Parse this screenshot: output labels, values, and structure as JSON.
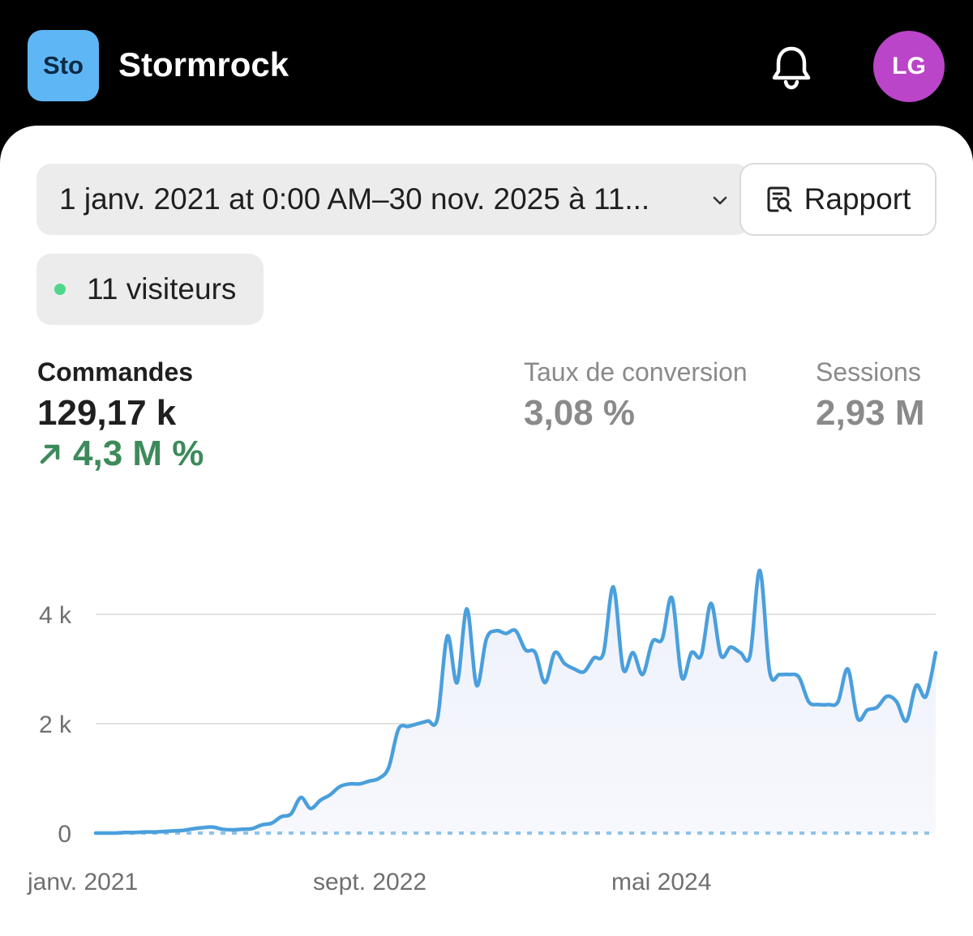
{
  "header": {
    "store_initials": "Sto",
    "store_name": "Stormrock",
    "avatar_initials": "LG",
    "avatar_color": "#bb45c8",
    "badge_color": "#5fb6f5",
    "bell_icon": "bell-icon"
  },
  "filters": {
    "date_range": "1 janv. 2021 at 0:00 AM–30 nov. 2025 à 11...",
    "report_label": "Rapport",
    "report_icon": "report-search-icon",
    "visitors_label": "11 visiteurs",
    "live_dot_color": "#4fd68a"
  },
  "metrics": {
    "orders_label": "Commandes",
    "orders_value": "129,17 k",
    "orders_change": "4,3 M %",
    "change_color": "#3d8a5a",
    "conversion_label": "Taux de conversion",
    "conversion_value": "3,08 %",
    "sessions_label": "Sessions",
    "sessions_value": "2,93 M"
  },
  "chart_data": {
    "type": "line",
    "title": "",
    "xlabel": "",
    "ylabel": "",
    "x_tick_labels": [
      "janv. 2021",
      "sept. 2022",
      "mai 2024"
    ],
    "y_tick_labels": [
      "0",
      "2 k",
      "4 k"
    ],
    "y_ticks": [
      0,
      2000,
      4000
    ],
    "ylim": [
      0,
      4000
    ],
    "grid": true,
    "line_color": "#4a9fdc",
    "series": [
      {
        "values": [
          0,
          0,
          0,
          10,
          10,
          20,
          20,
          30,
          40,
          50,
          80,
          100,
          110,
          70,
          60,
          70,
          80,
          150,
          180,
          300,
          350,
          650,
          450,
          600,
          700,
          850,
          900,
          900,
          950,
          1000,
          1200,
          1900,
          1950,
          2000,
          2050,
          2100,
          3600,
          2750,
          4100,
          2700,
          3550,
          3700,
          3650,
          3700,
          3350,
          3300,
          2750,
          3300,
          3100,
          3000,
          2950,
          3200,
          3300,
          4500,
          3000,
          3300,
          2900,
          3500,
          3550,
          4300,
          2850,
          3300,
          3250,
          4200,
          3250,
          3400,
          3300,
          3250,
          4800,
          2950,
          2900,
          2900,
          2850,
          2400,
          2350,
          2350,
          2400,
          3000,
          2100,
          2250,
          2300,
          2500,
          2400,
          2050,
          2700,
          2500,
          3300
        ]
      },
      {
        "values": [
          0,
          0,
          0,
          0,
          0,
          0,
          0,
          0,
          0,
          0,
          0,
          0,
          0,
          0,
          0,
          0,
          0,
          0,
          0,
          0,
          0,
          0,
          0,
          0,
          0,
          0,
          0,
          0,
          0,
          0,
          0,
          0,
          0,
          0,
          0,
          0,
          0,
          0,
          0,
          0,
          0,
          0,
          0,
          0,
          0,
          0,
          0,
          0,
          0,
          0,
          0,
          0,
          0,
          0,
          0,
          0,
          0,
          0,
          0,
          0,
          0,
          0,
          0,
          0,
          0,
          0,
          0,
          0,
          0,
          0,
          0,
          0,
          0,
          0,
          0,
          0,
          0,
          0,
          0,
          0,
          0,
          0,
          0,
          0,
          0,
          0,
          0
        ]
      }
    ]
  }
}
